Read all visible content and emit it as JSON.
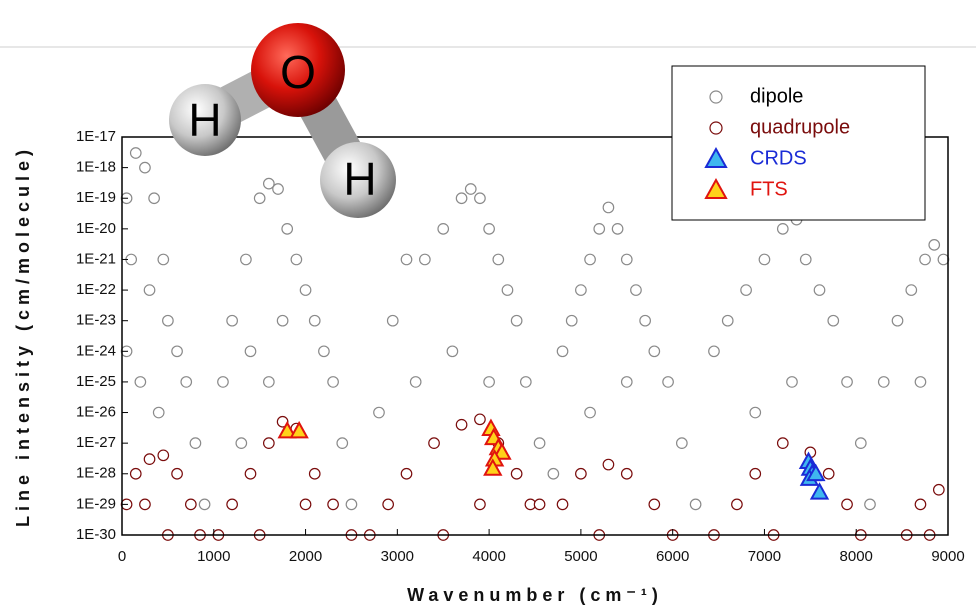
{
  "chart_data": {
    "type": "scatter",
    "x_label": "Wavenumber (cm⁻¹)",
    "y_label": "Line intensity (cm/molecule)",
    "annotations": [
      "O",
      "H",
      "H"
    ],
    "xlim": [
      0,
      9000
    ],
    "xticks": [
      0,
      1000,
      2000,
      3000,
      4000,
      5000,
      6000,
      7000,
      8000,
      9000
    ],
    "yscale": "log",
    "ylim": [
      1e-30,
      1e-17
    ],
    "yticks": [
      {
        "value": 1e-30,
        "label": "1E-30"
      },
      {
        "value": 1e-29,
        "label": "1E-29"
      },
      {
        "value": 1e-28,
        "label": "1E-28"
      },
      {
        "value": 1e-27,
        "label": "1E-27"
      },
      {
        "value": 1e-26,
        "label": "1E-26"
      },
      {
        "value": 1e-25,
        "label": "1E-25"
      },
      {
        "value": 1e-24,
        "label": "1E-24"
      },
      {
        "value": 1e-23,
        "label": "1E-23"
      },
      {
        "value": 1e-22,
        "label": "1E-22"
      },
      {
        "value": 1e-21,
        "label": "1E-21"
      },
      {
        "value": 1e-20,
        "label": "1E-20"
      },
      {
        "value": 1e-19,
        "label": "1E-19"
      },
      {
        "value": 1e-18,
        "label": "1E-18"
      },
      {
        "value": 1e-17,
        "label": "1E-17"
      }
    ],
    "legend": "upper right",
    "series": [
      {
        "name": "dipole",
        "marker": "circle",
        "color": "none",
        "edgecolor": "#8a8a8a",
        "text_color": "#000000",
        "x": [
          50,
          150,
          250,
          350,
          100,
          300,
          450,
          500,
          600,
          700,
          800,
          900,
          200,
          400,
          50,
          1100,
          1200,
          1350,
          1500,
          1600,
          1700,
          1800,
          1900,
          2000,
          2100,
          2200,
          2300,
          2400,
          2500,
          1400,
          1600,
          1750,
          1300,
          2800,
          2950,
          3100,
          3300,
          3500,
          3700,
          3800,
          3900,
          4000,
          4100,
          4200,
          4300,
          4400,
          4550,
          4700,
          3200,
          3600,
          4000,
          4800,
          4900,
          5000,
          5100,
          5200,
          5300,
          5400,
          5500,
          5600,
          5700,
          5800,
          5950,
          6100,
          6250,
          5100,
          5500,
          6450,
          6600,
          6800,
          7000,
          7200,
          7350,
          7450,
          7600,
          7750,
          7900,
          8050,
          8150,
          6900,
          7300,
          8300,
          8450,
          8600,
          8750,
          8850,
          8950,
          8700
        ],
        "y": [
          1e-19,
          3e-18,
          1e-18,
          1e-19,
          1e-21,
          1e-22,
          1e-21,
          1e-23,
          1e-24,
          1e-25,
          1e-27,
          1e-29,
          1e-25,
          1e-26,
          1e-24,
          1e-25,
          1e-23,
          1e-21,
          1e-19,
          3e-19,
          2e-19,
          1e-20,
          1e-21,
          1e-22,
          1e-23,
          1e-24,
          1e-25,
          1e-27,
          1e-29,
          1e-24,
          1e-25,
          1e-23,
          1e-27,
          1e-26,
          1e-23,
          1e-21,
          1e-21,
          1e-20,
          1e-19,
          2e-19,
          1e-19,
          1e-20,
          1e-21,
          1e-22,
          1e-23,
          1e-25,
          1e-27,
          1e-28,
          1e-25,
          1e-24,
          1e-25,
          1e-24,
          1e-23,
          1e-22,
          1e-21,
          1e-20,
          5e-20,
          1e-20,
          1e-21,
          1e-22,
          1e-23,
          1e-24,
          1e-25,
          1e-27,
          1e-29,
          1e-26,
          1e-25,
          1e-24,
          1e-23,
          1e-22,
          1e-21,
          1e-20,
          2e-20,
          1e-21,
          1e-22,
          1e-23,
          1e-25,
          1e-27,
          1e-29,
          1e-26,
          1e-25,
          1e-25,
          1e-23,
          1e-22,
          1e-21,
          3e-21,
          1e-21,
          1e-25
        ]
      },
      {
        "name": "quadrupole",
        "marker": "circle",
        "color": "#ffffff",
        "edgecolor": "#7a0c0c",
        "text_color": "#7a0c0c",
        "x": [
          50,
          150,
          300,
          450,
          600,
          750,
          850,
          250,
          500,
          1050,
          1200,
          1400,
          1600,
          1750,
          1900,
          2100,
          2300,
          2500,
          1500,
          2000,
          2700,
          2900,
          3100,
          3400,
          3700,
          3900,
          4100,
          4300,
          4450,
          3500,
          3900,
          4550,
          4800,
          5000,
          5300,
          5500,
          5800,
          6000,
          5200,
          6450,
          6700,
          6900,
          7200,
          7500,
          7700,
          7900,
          8050,
          7100,
          8550,
          8700,
          8900,
          8800
        ],
        "y": [
          1e-29,
          1e-28,
          3e-28,
          4e-28,
          1e-28,
          1e-29,
          1e-30,
          1e-29,
          1e-30,
          1e-30,
          1e-29,
          1e-28,
          1e-27,
          5e-27,
          3e-27,
          1e-28,
          1e-29,
          1e-30,
          1e-30,
          1e-29,
          1e-30,
          1e-29,
          1e-28,
          1e-27,
          4e-27,
          6e-27,
          1e-27,
          1e-28,
          1e-29,
          1e-30,
          1e-29,
          1e-29,
          1e-29,
          1e-28,
          2e-28,
          1e-28,
          1e-29,
          1e-30,
          1e-30,
          1e-30,
          1e-29,
          1e-28,
          1e-27,
          5e-28,
          1e-28,
          1e-29,
          1e-30,
          1e-30,
          1e-30,
          1e-29,
          3e-29,
          1e-30
        ]
      },
      {
        "name": "CRDS",
        "marker": "triangle",
        "color": "#3fb7ef",
        "edgecolor": "#1a2bd6",
        "text_color": "#1a2bd6",
        "x": [
          7480,
          7500,
          7520,
          7490,
          7560,
          7600
        ],
        "y": [
          2.5e-28,
          1.5e-28,
          1e-28,
          7e-29,
          1e-28,
          2.5e-29
        ]
      },
      {
        "name": "FTS",
        "marker": "triangle",
        "color": "#ffd21a",
        "edgecolor": "#e0140f",
        "text_color": "#e0140f",
        "x": [
          1800,
          1930,
          4020,
          4050,
          4100,
          4140,
          4060,
          4040
        ],
        "y": [
          2.5e-27,
          2.5e-27,
          3e-27,
          1.5e-27,
          7e-28,
          5e-28,
          3e-28,
          1.5e-28
        ]
      }
    ]
  }
}
